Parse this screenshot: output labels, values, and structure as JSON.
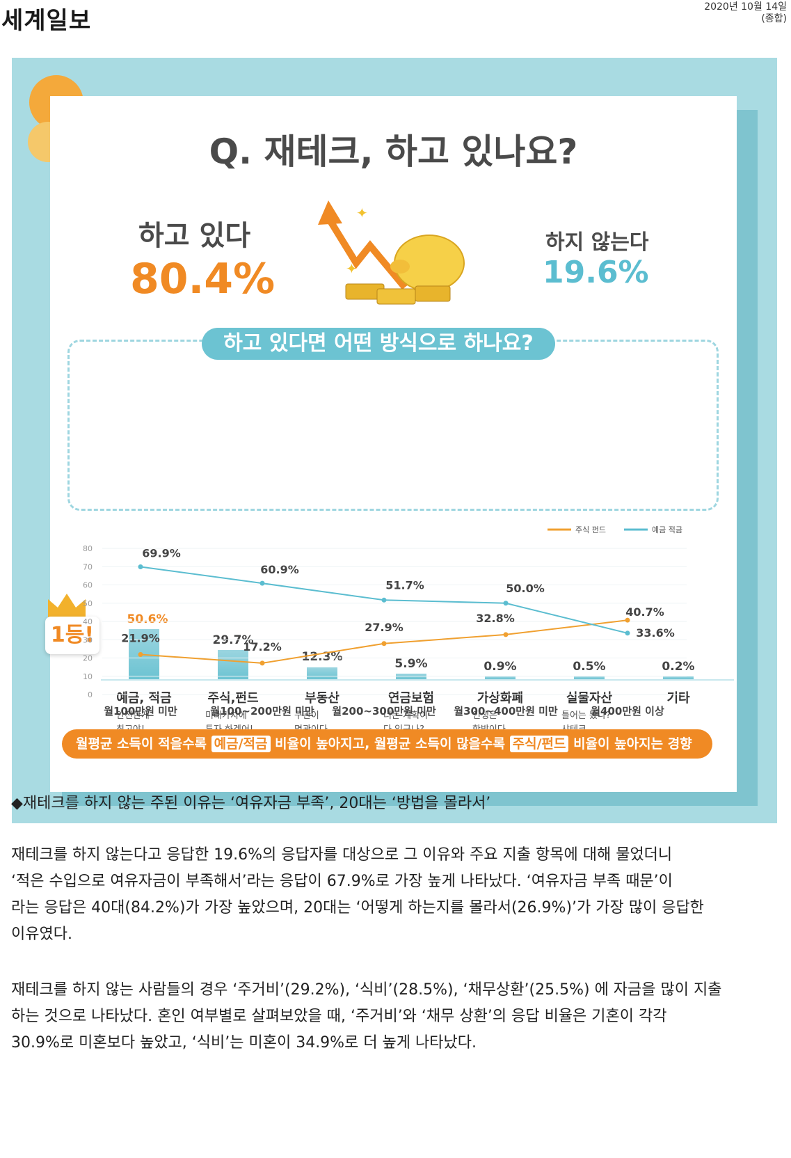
{
  "masthead": "세계일보",
  "dateline": {
    "date": "2020년 10월 14일",
    "section": "(종합)"
  },
  "infographic": {
    "question": "Q. 재테크, 하고 있나요?",
    "doing": {
      "label": "하고 있다",
      "value": "80.4%"
    },
    "not_doing": {
      "label": "하지 않는다",
      "value": "19.6%"
    },
    "subquestion": "하고 있다면 어떤 방식으로 하나요?",
    "badge": "1등!",
    "methods": [
      {
        "name": "예금, 적금",
        "value": 50.6,
        "value_label": "50.6%",
        "sub1": "안전한게",
        "sub2": "최고야!"
      },
      {
        "name": "주식,펀드",
        "value": 29.7,
        "value_label": "29.7%",
        "sub1": "미래가치에",
        "sub2": "투자 하겠어!"
      },
      {
        "name": "부동산",
        "value": 12.3,
        "value_label": "12.3%",
        "sub1": "구관이",
        "sub2": "명관이다"
      },
      {
        "name": "연금보험",
        "value": 5.9,
        "value_label": "5.9%",
        "sub1": "너는 계획이",
        "sub2": "다 있구나?"
      },
      {
        "name": "가상화폐",
        "value": 0.9,
        "value_label": "0.9%",
        "sub1": "인생은",
        "sub2": "한방이다"
      },
      {
        "name": "실물자산",
        "value": 0.5,
        "value_label": "0.5%",
        "sub1": "틀어는 봤나?",
        "sub2": "샤테크"
      },
      {
        "name": "기타",
        "value": 0.2,
        "value_label": "0.2%",
        "sub1": "",
        "sub2": ""
      }
    ],
    "footer": {
      "part1": "월평균 소득이 적을수록 ",
      "hl1": "예금/적금",
      "part2": " 비율이 높아지고, 월평균 소득이 많을수록 ",
      "hl2": "주식/펀드",
      "part3": " 비율이 높아지는 경향"
    }
  },
  "chart_data": [
    {
      "type": "bar",
      "categories": [
        "예금, 적금",
        "주식,펀드",
        "부동산",
        "연금보험",
        "가상화폐",
        "실물자산",
        "기타"
      ],
      "values": [
        50.6,
        29.7,
        12.3,
        5.9,
        0.9,
        0.5,
        0.2
      ],
      "title": "하고 있다면 어떤 방식으로 하나요?"
    },
    {
      "type": "line",
      "categories": [
        "월100만원 미만",
        "월100~200만원 미만",
        "월200~300만원 미만",
        "월300~400만원 미만",
        "월400만원 이상"
      ],
      "yticks": [
        "80",
        "70",
        "60",
        "50",
        "40",
        "30",
        "20",
        "10",
        "0"
      ],
      "ylim": [
        0,
        80
      ],
      "legend_position": "top-right",
      "series": [
        {
          "name": "주식 펀드",
          "color": "#f0a030",
          "values": [
            21.9,
            17.2,
            27.9,
            32.8,
            40.7
          ],
          "labels": [
            "21.9%",
            "17.2%",
            "27.9%",
            "32.8%",
            "40.7%"
          ]
        },
        {
          "name": "예금 적금",
          "color": "#5bbdd0",
          "values": [
            69.9,
            60.9,
            51.7,
            50.0,
            33.6
          ],
          "labels": [
            "69.9%",
            "60.9%",
            "51.7%",
            "50.0%",
            "33.6%"
          ]
        }
      ]
    }
  ],
  "article": {
    "subhead": "◆재테크를 하지 않는 주된 이유는 ‘여유자금 부족’, 20대는 ‘방법을 몰라서’",
    "p1": [
      "재테크를 하지 않는다고 응답한 19.6%의 응답자를 대상으로 그 이유와 주요 지출 항목에 대해 물었더니",
      "‘적은 수입으로 여유자금이 부족해서’라는 응답이 67.9%로 가장 높게 나타났다. ‘여유자금 부족 때문’이",
      "라는 응답은 40대(84.2%)가 가장 높았으며, 20대는 ‘어떻게 하는지를 몰라서(26.9%)’가 가장 많이 응답한",
      "이유였다."
    ],
    "p2": [
      "재테크를 하지 않는 사람들의 경우 ‘주거비’(29.2%), ‘식비’(28.5%), ‘채무상환’(25.5%) 에 자금을 많이 지출",
      "하는 것으로 나타났다. 혼인 여부별로 살펴보았을 때, ‘주거비’와 ‘채무 상환’의 응답 비율은 기혼이 각각",
      "30.9%로 미혼보다 높았고, ‘식비’는 미혼이 34.9%로 더 높게 나타났다."
    ]
  }
}
